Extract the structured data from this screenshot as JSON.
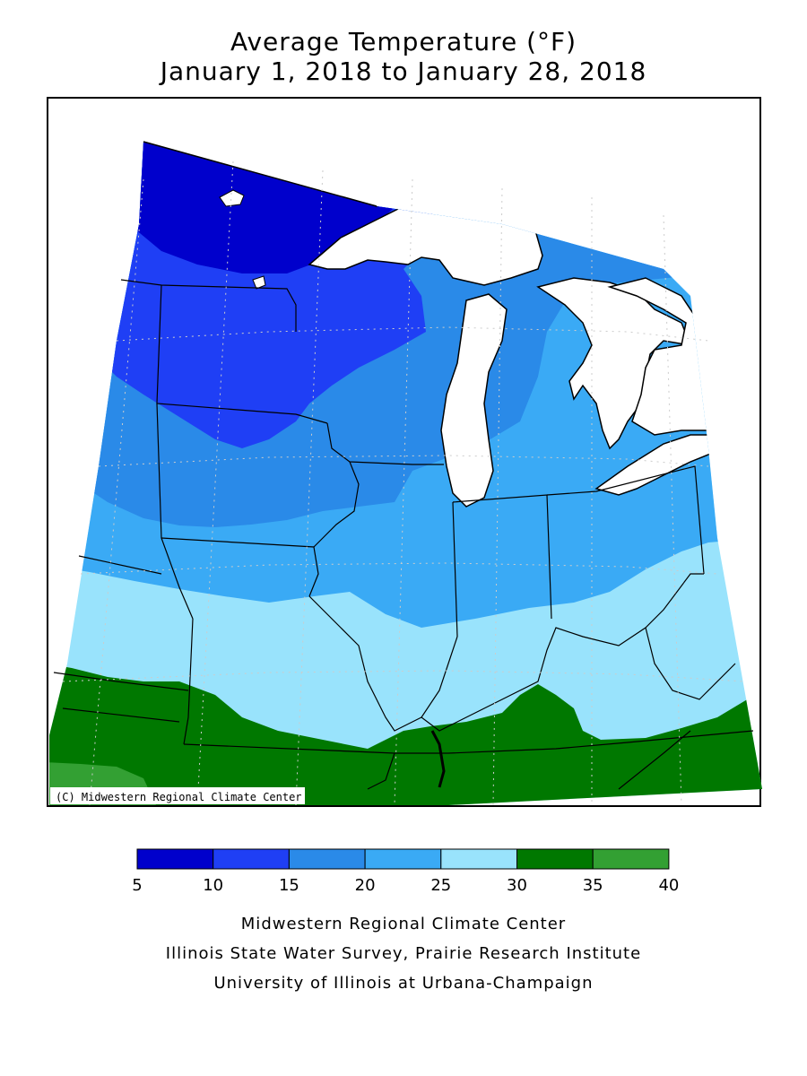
{
  "title": {
    "line1": "Average Temperature (°F)",
    "line2": "January 1, 2018 to January 28, 2018"
  },
  "map": {
    "copyright": "(C) Midwestern Regional Climate Center",
    "bands": [
      {
        "range": "5-10",
        "color": "#0000cc"
      },
      {
        "range": "10-15",
        "color": "#1f3ff5"
      },
      {
        "range": "15-20",
        "color": "#2a8ae8"
      },
      {
        "range": "20-25",
        "color": "#3aaaf5"
      },
      {
        "range": "25-30",
        "color": "#99e3fc"
      },
      {
        "range": "30-35",
        "color": "#007800"
      },
      {
        "range": "35-40",
        "color": "#33a033"
      }
    ],
    "water_color": "#ffffff",
    "border_color": "#000000",
    "grid": true
  },
  "legend": {
    "ticks": [
      "5",
      "10",
      "15",
      "20",
      "25",
      "30",
      "35",
      "40"
    ],
    "colors": [
      "#0000cc",
      "#1f3ff5",
      "#2a8ae8",
      "#3aaaf5",
      "#99e3fc",
      "#007800",
      "#33a033"
    ]
  },
  "footer": {
    "line1": "Midwestern Regional Climate Center",
    "line2": "Illinois State Water Survey, Prairie Research Institute",
    "line3": "University of Illinois at Urbana-Champaign"
  }
}
